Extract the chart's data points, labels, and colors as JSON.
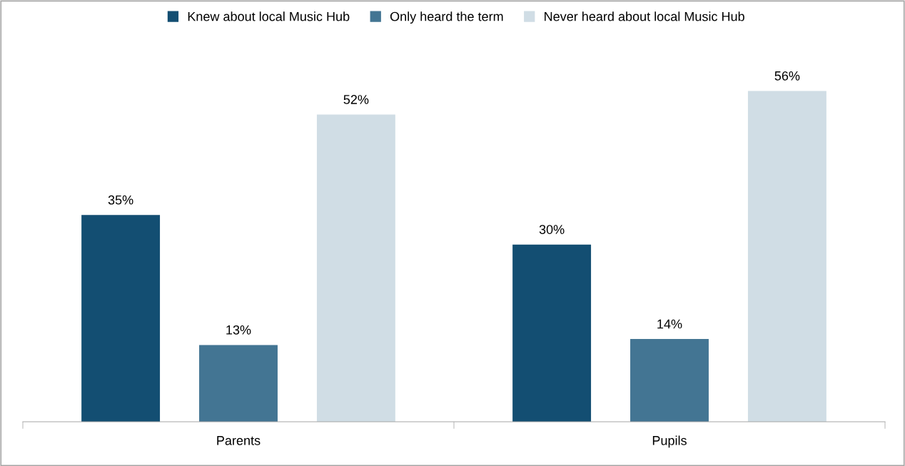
{
  "chart_data": {
    "type": "bar",
    "categories": [
      "Parents",
      "Pupils"
    ],
    "series": [
      {
        "name": "Knew about local Music Hub",
        "color": "#134e72",
        "values": [
          35,
          30
        ],
        "value_labels": [
          "35%",
          "30%"
        ]
      },
      {
        "name": "Only heard the term",
        "color": "#437593",
        "values": [
          13,
          14
        ],
        "value_labels": [
          "13%",
          "14%"
        ]
      },
      {
        "name": "Never heard about local Music Hub",
        "color": "#d0dde5",
        "values": [
          52,
          56
        ],
        "value_labels": [
          "52%",
          "56%"
        ]
      }
    ],
    "legend": "top",
    "grid": false,
    "tick_labels": "x"
  }
}
